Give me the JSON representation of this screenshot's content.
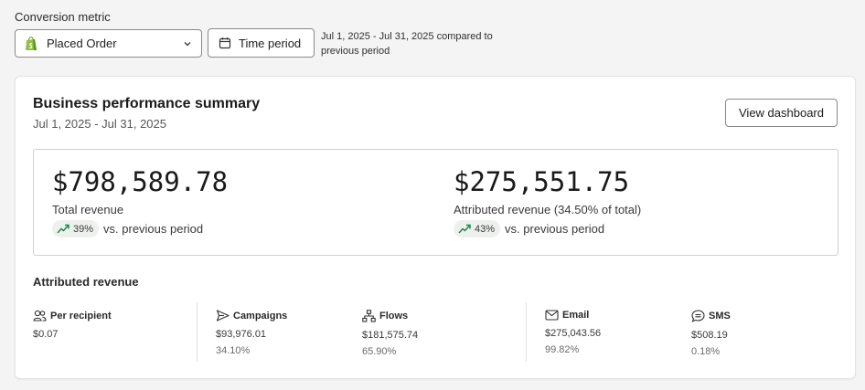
{
  "conversion": {
    "label": "Conversion metric",
    "selected": "Placed Order",
    "time_button": "Time period",
    "compare_text": "Jul 1, 2025 - Jul 31, 2025 compared to previous period"
  },
  "summary": {
    "title": "Business performance summary",
    "date_range": "Jul 1, 2025 - Jul 31, 2025",
    "view_button": "View dashboard",
    "total": {
      "amount": "$798,589.78",
      "label": "Total revenue",
      "change": "39%",
      "change_suffix": "vs. previous period"
    },
    "attributed": {
      "amount": "$275,551.75",
      "label": "Attributed revenue (34.50% of total)",
      "change": "43%",
      "change_suffix": "vs. previous period"
    }
  },
  "attributed_breakdown": {
    "title": "Attributed revenue",
    "stats": [
      {
        "label": "Per recipient",
        "icon": "people-icon",
        "value": "$0.07",
        "pct": ""
      },
      {
        "label": "Campaigns",
        "icon": "send-icon",
        "value": "$93,976.01",
        "pct": "34.10%"
      },
      {
        "label": "Flows",
        "icon": "flow-icon",
        "value": "$181,575.74",
        "pct": "65.90%"
      },
      {
        "label": "Email",
        "icon": "mail-icon",
        "value": "$275,043.56",
        "pct": "99.82%"
      },
      {
        "label": "SMS",
        "icon": "sms-icon",
        "value": "$508.19",
        "pct": "0.18%"
      }
    ]
  },
  "colors": {
    "trend_up": "#1f8a4c",
    "shopify_green": "#5e8e3e"
  }
}
